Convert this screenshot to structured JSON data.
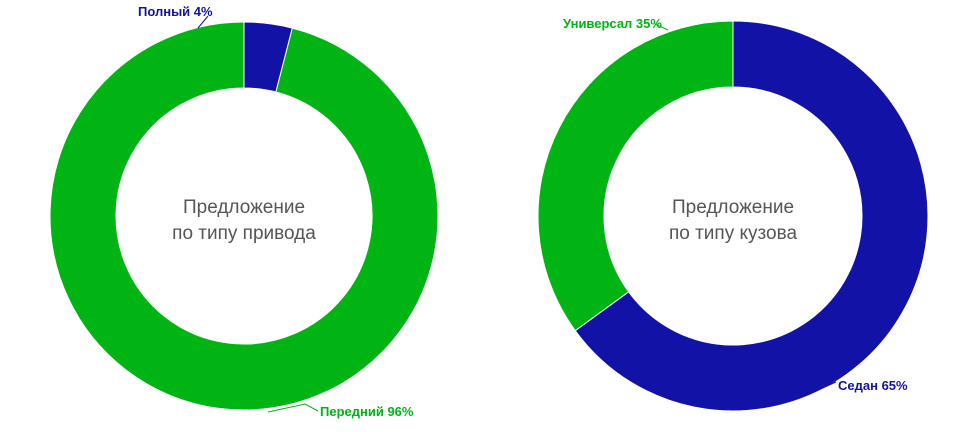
{
  "chart_data": [
    {
      "type": "pie",
      "title": "Предложение по типу привода",
      "center_lines": [
        "Предложение",
        "по типу привода"
      ],
      "slices": [
        {
          "label": "Передний 96%",
          "name": "Передний",
          "value": 96,
          "color": "#00b414"
        },
        {
          "label": "Полный 4%",
          "name": "Полный",
          "value": 4,
          "color": "#1212a6"
        }
      ],
      "start": "top",
      "direction": "counterclockwise"
    },
    {
      "type": "pie",
      "title": "Предложение по типу кузова",
      "center_lines": [
        "Предложение",
        "по типу кузова"
      ],
      "slices": [
        {
          "label": "Седан 65%",
          "name": "Седан",
          "value": 65,
          "color": "#1212a6"
        },
        {
          "label": "Универсал 35%",
          "name": "Универсал",
          "value": 35,
          "color": "#00b414"
        }
      ],
      "start": "top",
      "direction": "clockwise"
    }
  ]
}
